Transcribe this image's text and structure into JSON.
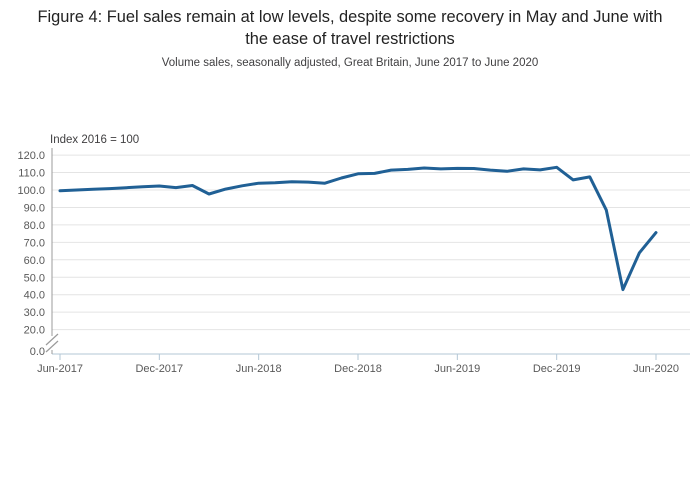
{
  "chart_data": {
    "type": "line",
    "title": "Figure 4: Fuel sales remain at low levels, despite some recovery in May and June with the ease of travel restrictions",
    "subtitle": "Volume sales, seasonally adjusted, Great Britain, June 2017 to June 2020",
    "unit_label": "Index 2016 = 100",
    "legend": "none",
    "grid": "horizontal",
    "axis_break": true,
    "ylim": [
      0,
      120
    ],
    "y_ticks": [
      120,
      110,
      100,
      90,
      80,
      70,
      60,
      50,
      40,
      30,
      20
    ],
    "y_base_tick": 0,
    "x_tick_labels": [
      "Jun-2017",
      "Dec-2017",
      "Jun-2018",
      "Dec-2018",
      "Jun-2019",
      "Dec-2019",
      "Jun-2020"
    ],
    "x": [
      "Jun-2017",
      "Jul-2017",
      "Aug-2017",
      "Sep-2017",
      "Oct-2017",
      "Nov-2017",
      "Dec-2017",
      "Jan-2018",
      "Feb-2018",
      "Mar-2018",
      "Apr-2018",
      "May-2018",
      "Jun-2018",
      "Jul-2018",
      "Aug-2018",
      "Sep-2018",
      "Oct-2018",
      "Nov-2018",
      "Dec-2018",
      "Jan-2019",
      "Feb-2019",
      "Mar-2019",
      "Apr-2019",
      "May-2019",
      "Jun-2019",
      "Jul-2019",
      "Aug-2019",
      "Sep-2019",
      "Oct-2019",
      "Nov-2019",
      "Dec-2019",
      "Jan-2020",
      "Feb-2020",
      "Mar-2020",
      "Apr-2020",
      "May-2020",
      "Jun-2020"
    ],
    "series": [
      {
        "name": "Fuel volume sales index",
        "values": [
          99.6,
          100.0,
          100.4,
          100.8,
          101.3,
          101.9,
          102.3,
          101.4,
          102.6,
          97.7,
          100.5,
          102.4,
          103.9,
          104.2,
          104.7,
          104.5,
          103.9,
          106.9,
          109.3,
          109.5,
          111.4,
          111.8,
          112.6,
          112.1,
          112.4,
          112.3,
          111.4,
          110.7,
          112.1,
          111.5,
          113.0,
          105.8,
          107.5,
          88.5,
          42.9,
          64.0,
          75.6
        ]
      }
    ],
    "line_color": "#206095"
  }
}
